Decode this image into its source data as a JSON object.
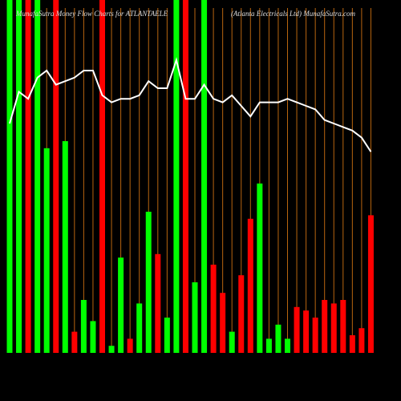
{
  "chart_data": {
    "type": "bar",
    "title": "MunafaSutra Money Flow Charts for ATLANTAELE",
    "subtitle": "(Atlanta Electricals Ltd) MunafaSutra.com",
    "ylim": [
      0,
      100
    ],
    "grid_color": "#b8650f",
    "values": [
      100,
      100,
      100,
      100,
      58,
      100,
      60,
      6,
      15,
      9,
      100,
      2,
      27,
      4,
      14,
      40,
      28,
      10,
      100,
      100,
      20,
      100,
      25,
      17,
      6,
      22,
      38,
      48,
      4,
      8,
      4,
      13,
      12,
      10,
      15,
      14,
      15,
      5,
      7,
      39
    ],
    "colors": [
      "#00ff00",
      "#00ff00",
      "#ff0000",
      "#00ff00",
      "#00ff00",
      "#ff0000",
      "#00ff00",
      "#ff0000",
      "#00ff00",
      "#00ff00",
      "#ff0000",
      "#00ff00",
      "#00ff00",
      "#ff0000",
      "#00ff00",
      "#00ff00",
      "#ff0000",
      "#00ff00",
      "#00ff00",
      "#ff0000",
      "#00ff00",
      "#00ff00",
      "#ff0000",
      "#ff0000",
      "#00ff00",
      "#ff0000",
      "#ff0000",
      "#00ff00",
      "#00ff00",
      "#00ff00",
      "#00ff00",
      "#ff0000",
      "#ff0000",
      "#ff0000",
      "#ff0000",
      "#ff0000",
      "#ff0000",
      "#ff0000",
      "#ff0000",
      "#ff0000"
    ],
    "line": {
      "color": "#ffffff",
      "values": [
        65,
        74,
        72,
        78,
        80,
        76,
        77,
        78,
        80,
        80,
        73,
        71,
        72,
        72,
        73,
        77,
        75,
        75,
        83,
        72,
        72,
        76,
        72,
        71,
        73,
        70,
        67,
        71,
        71,
        71,
        72,
        71,
        70,
        69,
        66,
        65,
        64,
        63,
        61,
        57
      ]
    }
  }
}
